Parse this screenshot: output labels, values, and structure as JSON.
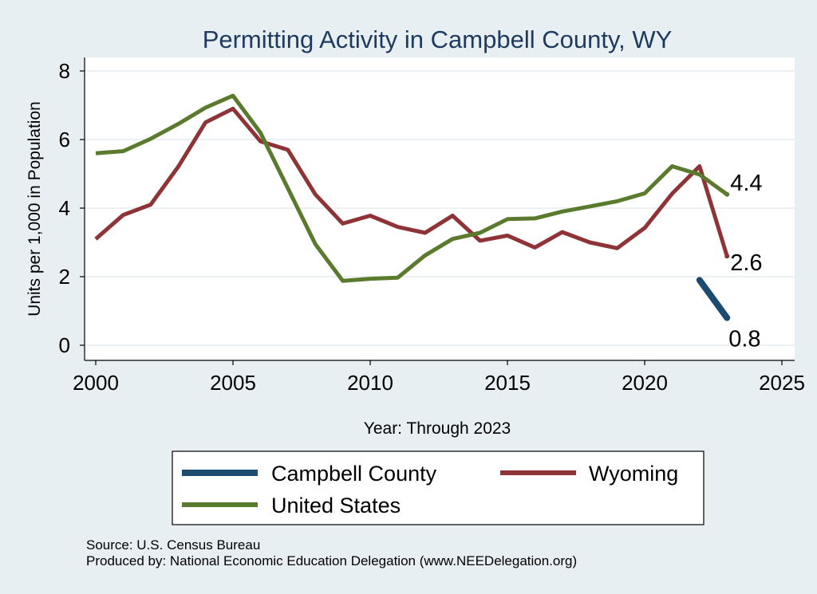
{
  "chart_data": {
    "type": "line",
    "title": "Permitting Activity in Campbell County, WY",
    "xlabel": "Year: Through 2023",
    "ylabel": "Units per 1,000 in Population",
    "xlim": [
      2000,
      2025
    ],
    "ylim": [
      0,
      8
    ],
    "x_ticks": [
      2000,
      2005,
      2010,
      2015,
      2020,
      2025
    ],
    "y_ticks": [
      0,
      2,
      4,
      6,
      8
    ],
    "grid": true,
    "legend_position": "bottom",
    "series": [
      {
        "name": "Campbell County",
        "color": "#1c4a70",
        "x": [
          2022,
          2023
        ],
        "values": [
          1.9,
          0.8
        ],
        "end_label": "0.8"
      },
      {
        "name": "Wyoming",
        "color": "#8e3437",
        "x": [
          2000,
          2001,
          2002,
          2003,
          2004,
          2005,
          2006,
          2007,
          2008,
          2009,
          2010,
          2011,
          2012,
          2013,
          2014,
          2015,
          2016,
          2017,
          2018,
          2019,
          2020,
          2021,
          2022,
          2023
        ],
        "values": [
          3.1,
          3.8,
          4.1,
          5.2,
          6.5,
          6.9,
          5.95,
          5.7,
          4.4,
          3.55,
          3.78,
          3.45,
          3.28,
          3.78,
          3.05,
          3.2,
          2.85,
          3.3,
          3.0,
          2.83,
          3.42,
          4.42,
          5.22,
          2.6
        ],
        "end_label": "2.6"
      },
      {
        "name": "United States",
        "color": "#5a7a2e",
        "x": [
          2000,
          2001,
          2002,
          2003,
          2004,
          2005,
          2006,
          2007,
          2008,
          2009,
          2010,
          2011,
          2012,
          2013,
          2014,
          2015,
          2016,
          2017,
          2018,
          2019,
          2020,
          2021,
          2022,
          2023
        ],
        "values": [
          5.6,
          5.66,
          6.02,
          6.45,
          6.93,
          7.28,
          6.2,
          4.58,
          2.95,
          1.88,
          1.94,
          1.97,
          2.62,
          3.1,
          3.28,
          3.68,
          3.7,
          3.9,
          4.05,
          4.2,
          4.43,
          5.22,
          4.98,
          4.4
        ],
        "end_label": "4.4"
      }
    ],
    "legend": [
      {
        "label": "Campbell County",
        "color": "#1c4a70"
      },
      {
        "label": "Wyoming",
        "color": "#8e3437"
      },
      {
        "label": "United States",
        "color": "#5a7a2e"
      }
    ]
  },
  "source_note": "Source: U.S. Census Bureau",
  "producer_note": "Produced by: National Economic Education Delegation (www.NEEDelegation.org)"
}
